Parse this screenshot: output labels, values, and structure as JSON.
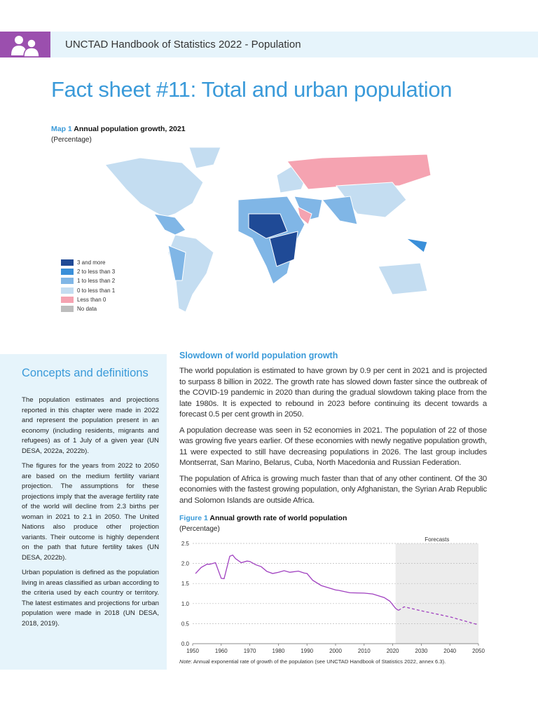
{
  "header": {
    "title": "UNCTAD Handbook of Statistics 2022 - Population",
    "icon": "people-icon",
    "accent": "#9b4fae"
  },
  "page_title": "Fact sheet #11: Total and urban population",
  "map": {
    "label": "Map 1",
    "title": "Annual population growth, 2021",
    "subtitle": "(Percentage)",
    "legend": [
      {
        "label": "3 and more",
        "color": "#1f4a96"
      },
      {
        "label": "2 to less than 3",
        "color": "#3a8fd9"
      },
      {
        "label": "1 to less than 2",
        "color": "#80b6e6"
      },
      {
        "label": "0 to less than 1",
        "color": "#c4ddf1"
      },
      {
        "label": "Less than 0",
        "color": "#f5a3b1"
      },
      {
        "label": "No data",
        "color": "#bdbdbd"
      }
    ]
  },
  "concepts": {
    "heading": "Concepts and definitions",
    "paragraphs": [
      "The population estimates and projections reported in this chapter were made in 2022 and represent the population present in an economy (including residents, migrants and refugees) as of 1 July of a given year (UN DESA, 2022a, 2022b).",
      "The figures for the years from 2022 to 2050 are based on the medium fertility variant projection. The assumptions for these projections imply that the average fertility rate of the world will decline from 2.3 births per woman in 2021 to 2.1 in 2050. The United Nations also produce other projection variants. Their outcome is highly dependent on the path that future fertility takes (UN DESA, 2022b).",
      "Urban population is defined as the population living in areas classified as urban according to the criteria used by each country or territory. The latest estimates and projections for urban population were made in 2018 (UN DESA, 2018, 2019)."
    ]
  },
  "article": {
    "heading": "Slowdown of world population growth",
    "paragraphs": [
      "The world population is estimated to have grown by 0.9 per cent in 2021 and is projected to surpass 8 billion in 2022. The growth rate has slowed down faster since the outbreak of the COVID-19 pandemic in 2020 than during the gradual slowdown taking place from the late 1980s. It is expected to rebound in 2023 before continuing its decent towards a forecast 0.5 per cent growth in 2050.",
      "A population decrease was seen in 52 economies in 2021. The population of 22 of those was growing five years earlier. Of these economies with newly negative population growth, 11 were expected to still have decreasing populations in 2026. The last group includes Montserrat, San Marino, Belarus, Cuba, North Macedonia and Russian Federation.",
      "The population of Africa is growing much faster than that of any other continent. Of the 30 economies with the fastest growing population, only Afghanistan, the Syrian Arab Republic and Solomon Islands are outside Africa."
    ]
  },
  "chart_data": {
    "type": "line",
    "label": "Figure 1",
    "title": "Annual growth rate of world population",
    "subtitle": "(Percentage)",
    "annotation": "Forecasts",
    "forecast_start": 2021,
    "xlim": [
      1950,
      2050
    ],
    "ylim": [
      0,
      2.5
    ],
    "xticks": [
      "1950",
      "1960",
      "1970",
      "1980",
      "1990",
      "2000",
      "2010",
      "2020",
      "2030",
      "2040",
      "2050"
    ],
    "yticks": [
      "0.0",
      "0.5",
      "1.0",
      "1.5",
      "2.0",
      "2.5"
    ],
    "grid": true,
    "color": "#a040c0",
    "series": [
      {
        "style": "solid",
        "x": [
          1951,
          1953,
          1955,
          1956,
          1958,
          1960,
          1961,
          1963,
          1964,
          1965,
          1967,
          1969,
          1970,
          1972,
          1974,
          1976,
          1978,
          1980,
          1982,
          1984,
          1987,
          1989,
          1990,
          1992,
          1995,
          2000,
          2001,
          2005,
          2010,
          2013,
          2017,
          2019,
          2021,
          2022
        ],
        "y": [
          1.75,
          1.9,
          1.98,
          1.98,
          2.02,
          1.63,
          1.62,
          2.18,
          2.21,
          2.12,
          2.02,
          2.06,
          2.05,
          1.97,
          1.92,
          1.8,
          1.75,
          1.78,
          1.82,
          1.78,
          1.81,
          1.76,
          1.75,
          1.58,
          1.45,
          1.34,
          1.33,
          1.27,
          1.26,
          1.24,
          1.15,
          1.06,
          0.88,
          0.83
        ]
      },
      {
        "style": "dashed",
        "x": [
          2022,
          2024,
          2030,
          2040,
          2050
        ],
        "y": [
          0.83,
          0.92,
          0.82,
          0.67,
          0.47
        ]
      }
    ],
    "note_label": "Note",
    "note": ": Annual exponential rate of growth of the population (see UNCTAD Handbook of Statistics 2022, annex 6.3)."
  }
}
